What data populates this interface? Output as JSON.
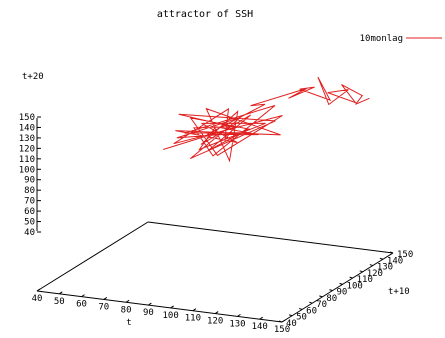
{
  "chart_data": {
    "type": "line",
    "title": "attractor of SSH",
    "legend": {
      "label": "10monlag",
      "color": "#e02020",
      "placement": "top-right"
    },
    "axes": {
      "x": {
        "label": "t",
        "ticks": [
          40,
          50,
          60,
          70,
          80,
          90,
          100,
          110,
          120,
          130,
          140,
          150
        ]
      },
      "y": {
        "label": "t+10",
        "ticks": [
          40,
          50,
          60,
          70,
          80,
          90,
          100,
          110,
          120,
          130,
          140,
          150
        ]
      },
      "z": {
        "label": "t+20",
        "ticks": [
          40,
          50,
          60,
          70,
          80,
          90,
          100,
          110,
          120,
          130,
          140,
          150
        ]
      }
    },
    "series": [
      {
        "name": "10monlag",
        "points": [
          [
            70,
            75,
            85
          ],
          [
            92,
            110,
            96
          ],
          [
            75,
            82,
            118
          ],
          [
            108,
            120,
            100
          ],
          [
            84,
            72,
            78
          ],
          [
            100,
            95,
            112
          ],
          [
            72,
            88,
            92
          ],
          [
            95,
            118,
            88
          ],
          [
            82,
            70,
            104
          ],
          [
            112,
            108,
            120
          ],
          [
            90,
            86,
            76
          ],
          [
            76,
            100,
            98
          ],
          [
            104,
            76,
            110
          ],
          [
            86,
            114,
            82
          ],
          [
            96,
            90,
            122
          ],
          [
            74,
            78,
            90
          ],
          [
            110,
            124,
            104
          ],
          [
            88,
            98,
            72
          ],
          [
            80,
            84,
            114
          ],
          [
            98,
            112,
            94
          ],
          [
            92,
            74,
            86
          ],
          [
            106,
            92,
            116
          ],
          [
            78,
            104,
            80
          ],
          [
            90,
            120,
            108
          ],
          [
            100,
            80,
            74
          ],
          [
            84,
            94,
            120
          ],
          [
            114,
            110,
            90
          ],
          [
            72,
            86,
            100
          ],
          [
            96,
            102,
            84
          ],
          [
            88,
            76,
            112
          ],
          [
            104,
            118,
            98
          ],
          [
            80,
            96,
            78
          ],
          [
            92,
            84,
            106
          ],
          [
            102,
            114,
            88
          ],
          [
            86,
            90,
            96
          ],
          [
            110,
            100,
            124
          ],
          [
            94,
            126,
            112
          ],
          [
            118,
            134,
            128
          ],
          [
            108,
            138,
            116
          ],
          [
            124,
            128,
            132
          ],
          [
            112,
            142,
            124
          ],
          [
            130,
            132,
            118
          ],
          [
            120,
            144,
            136
          ],
          [
            128,
            136,
            112
          ],
          [
            136,
            140,
            126
          ],
          [
            124,
            146,
            120
          ],
          [
            140,
            138,
            114
          ],
          [
            132,
            142,
            130
          ],
          [
            144,
            136,
            122
          ],
          [
            138,
            144,
            110
          ],
          [
            146,
            140,
            118
          ]
        ]
      }
    ],
    "xlim": [
      40,
      150
    ],
    "ylim": [
      40,
      150
    ],
    "zlim": [
      40,
      150
    ]
  }
}
